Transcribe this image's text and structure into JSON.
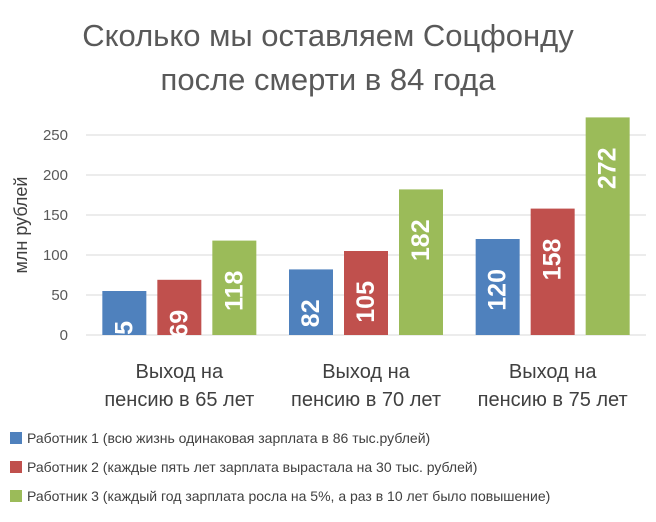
{
  "chart_data": {
    "type": "bar",
    "title_lines": [
      "Сколько мы оставляем Соцфонду",
      "после смерти в 84 года"
    ],
    "ylabel": "млн рублей",
    "xlabel": "",
    "ylim": [
      0,
      250
    ],
    "yticks": [
      0,
      50,
      100,
      150,
      200,
      250
    ],
    "grid": true,
    "legend_position": "bottom",
    "categories": [
      [
        "Выход на",
        "пенсию в 65 лет"
      ],
      [
        "Выход на",
        "пенсию в 70 лет"
      ],
      [
        "Выход на",
        "пенсию в 75 лет"
      ]
    ],
    "series": [
      {
        "name": "Работник 1 (всю жизнь одинаковая зарплата в 86 тыс.рублей)",
        "color": "#4f81bd",
        "values": [
          55,
          82,
          120
        ]
      },
      {
        "name": "Работник 2 (каждые пять лет зарплата вырастала на 30 тыс. рублей)",
        "color": "#c0504d",
        "values": [
          69,
          105,
          158
        ]
      },
      {
        "name": "Работник 3 (каждый год зарплата росла на 5%, а раз в 10 лет было повышение)",
        "color": "#9bbb59",
        "values": [
          118,
          182,
          272
        ]
      }
    ]
  }
}
